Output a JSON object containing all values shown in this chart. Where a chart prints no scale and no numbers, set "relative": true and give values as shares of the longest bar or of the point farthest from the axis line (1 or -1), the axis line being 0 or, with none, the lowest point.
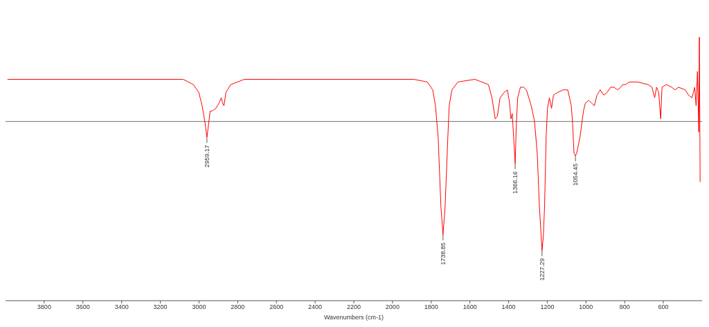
{
  "chart_data": {
    "type": "line",
    "relative": true,
    "xlabel": "Wavenumbers (cm-1)",
    "xlim": [
      4000,
      400
    ],
    "xticks": [
      3800,
      3600,
      3400,
      3200,
      3000,
      2800,
      2600,
      2400,
      2200,
      2000,
      1800,
      1600,
      1400,
      1200,
      1000,
      800,
      600
    ],
    "x": [
      3990,
      3643,
      3292,
      3082,
      3029,
      3001,
      2984,
      2970,
      2959,
      2949,
      2942,
      2931,
      2913,
      2896,
      2885,
      2878,
      2871,
      2861,
      2836,
      2766,
      2591,
      2240,
      1890,
      1820,
      1792,
      1778,
      1764,
      1750,
      1739,
      1728,
      1714,
      1707,
      1693,
      1662,
      1574,
      1504,
      1486,
      1469,
      1458,
      1444,
      1423,
      1406,
      1395,
      1388,
      1381,
      1374,
      1366,
      1360,
      1353,
      1339,
      1322,
      1308,
      1283,
      1266,
      1252,
      1241,
      1227,
      1220,
      1214,
      1206,
      1199,
      1189,
      1178,
      1168,
      1147,
      1118,
      1094,
      1076,
      1069,
      1062,
      1054,
      1048,
      1031,
      1013,
      1003,
      985,
      971,
      957,
      943,
      926,
      908,
      891,
      873,
      855,
      838,
      820,
      810,
      796,
      775,
      733,
      680,
      659,
      645,
      635,
      624,
      614,
      607,
      585,
      557,
      540,
      522,
      487,
      470,
      452,
      438,
      431,
      424,
      417,
      414,
      410
    ],
    "series": [
      {
        "color": "#ff0000",
        "values": [
          0.84,
          0.84,
          0.84,
          0.84,
          0.82,
          0.79,
          0.74,
          0.68,
          0.62,
          0.68,
          0.72,
          0.72,
          0.73,
          0.75,
          0.77,
          0.75,
          0.74,
          0.79,
          0.82,
          0.84,
          0.84,
          0.84,
          0.84,
          0.83,
          0.8,
          0.74,
          0.62,
          0.36,
          0.25,
          0.36,
          0.62,
          0.74,
          0.8,
          0.83,
          0.84,
          0.82,
          0.77,
          0.69,
          0.7,
          0.77,
          0.79,
          0.8,
          0.75,
          0.69,
          0.71,
          0.62,
          0.52,
          0.67,
          0.77,
          0.81,
          0.81,
          0.8,
          0.74,
          0.68,
          0.56,
          0.36,
          0.19,
          0.25,
          0.36,
          0.62,
          0.73,
          0.77,
          0.73,
          0.78,
          0.79,
          0.8,
          0.8,
          0.74,
          0.67,
          0.56,
          0.55,
          0.56,
          0.62,
          0.72,
          0.75,
          0.76,
          0.75,
          0.74,
          0.78,
          0.8,
          0.78,
          0.79,
          0.81,
          0.81,
          0.8,
          0.81,
          0.82,
          0.82,
          0.83,
          0.83,
          0.82,
          0.81,
          0.77,
          0.81,
          0.79,
          0.69,
          0.81,
          0.82,
          0.81,
          0.8,
          0.81,
          0.8,
          0.78,
          0.77,
          0.81,
          0.74,
          0.87,
          0.64,
          1,
          0.45
        ]
      }
    ],
    "ref_lines": [
      {
        "axis": "y",
        "value": 0.68,
        "color": "#707070"
      }
    ],
    "annotations": [
      {
        "text": "2959.17",
        "x": 2959.17,
        "y": 0.62
      },
      {
        "text": "1738.85",
        "x": 1738.85,
        "y": 0.25
      },
      {
        "text": "1366.16",
        "x": 1366.16,
        "y": 0.52
      },
      {
        "text": "1227.29",
        "x": 1227.29,
        "y": 0.19
      },
      {
        "text": "1054.45",
        "x": 1054.45,
        "y": 0.55
      }
    ],
    "grid": false,
    "legend": false,
    "marker": "none",
    "line_style": "solid"
  }
}
